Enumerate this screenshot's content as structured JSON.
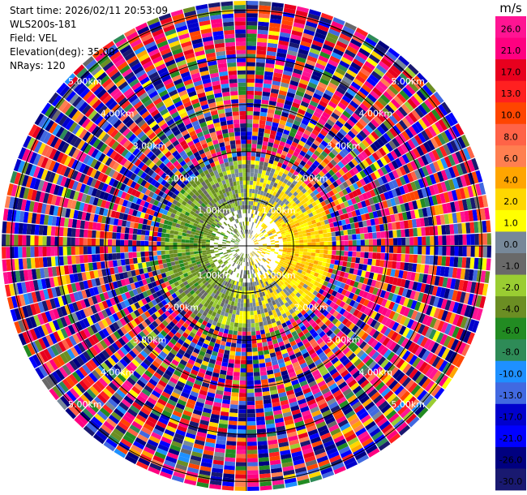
{
  "info": {
    "start_time": "Start time: 2026/02/11 20:53:09",
    "instrument": "WLS200s-181",
    "field": "Field: VEL",
    "elevation": "Elevation(deg): 35.00",
    "nrays": "NRays: 120"
  },
  "chart_data": {
    "type": "ppi",
    "field": "VEL",
    "n_rays": 120,
    "max_range_km": 5.2,
    "range_rings_km": [
      1,
      2,
      3,
      4,
      5
    ],
    "ring_labels": [
      "1.00km",
      "2.00km",
      "3.00km",
      "4.00km",
      "5.00km"
    ],
    "colorbar": {
      "unit": "m/s",
      "ticks": [
        "26.0",
        "21.0",
        "17.0",
        "13.0",
        "10.0",
        "8.0",
        "6.0",
        "4.0",
        "2.0",
        "1.0",
        "0.0",
        "-1.0",
        "-2.0",
        "-4.0",
        "-6.0",
        "-8.0",
        "-10.0",
        "-13.0",
        "-17.0",
        "-21.0",
        "-26.0",
        "-30.0"
      ],
      "colors": [
        "#ff1493",
        "#ff0080",
        "#e8001e",
        "#ff2020",
        "#ff4500",
        "#ff6347",
        "#ff7f50",
        "#ffa500",
        "#ffd700",
        "#ffff00",
        "#778899",
        "#696969",
        "#9acd32",
        "#6b8e23",
        "#228b22",
        "#2e8b57",
        "#1e90ff",
        "#4169e1",
        "#0000cd",
        "#0000ff",
        "#000080",
        "#191970"
      ]
    }
  }
}
